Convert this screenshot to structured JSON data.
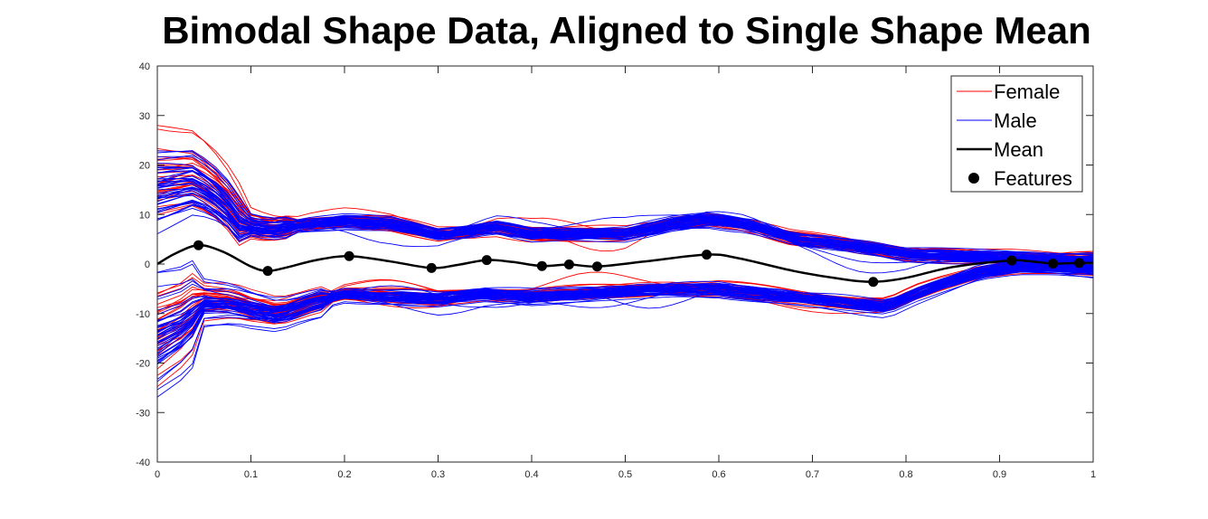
{
  "chart_data": {
    "type": "line",
    "title": "Bimodal Shape Data, Aligned to Single Shape Mean",
    "xlabel": "",
    "ylabel": "",
    "xlim": [
      0,
      1
    ],
    "ylim": [
      -40,
      40
    ],
    "xticks": [
      0,
      0.1,
      0.2,
      0.3,
      0.4,
      0.5,
      0.6,
      0.7,
      0.8,
      0.9,
      1
    ],
    "xtick_labels": [
      "0",
      "0.1",
      "0.2",
      "0.3",
      "0.4",
      "0.5",
      "0.6",
      "0.7",
      "0.8",
      "0.9",
      "1"
    ],
    "yticks": [
      -40,
      -30,
      -20,
      -10,
      0,
      10,
      20,
      30,
      40
    ],
    "ytick_labels": [
      "-40",
      "-30",
      "-20",
      "-10",
      "0",
      "10",
      "20",
      "30",
      "40"
    ],
    "grid": false,
    "legend_position": "top-right",
    "legend": [
      "Female",
      "Male",
      "Mean",
      "Features"
    ],
    "colors": {
      "Female": "#ff0000",
      "Male": "#0000ff",
      "Mean": "#000000",
      "Features": "#000000"
    },
    "series": [
      {
        "name": "Mean",
        "x": [
          0,
          0.02,
          0.044,
          0.07,
          0.1,
          0.118,
          0.14,
          0.17,
          0.205,
          0.25,
          0.293,
          0.32,
          0.352,
          0.38,
          0.411,
          0.44,
          0.47,
          0.52,
          0.587,
          0.62,
          0.68,
          0.73,
          0.765,
          0.8,
          0.85,
          0.91,
          0.93,
          0.957,
          0.985,
          1
        ],
        "values": [
          0,
          2.2,
          3.8,
          2.5,
          -0.5,
          -1.4,
          -0.6,
          0.8,
          1.6,
          0.5,
          -0.8,
          -0.2,
          0.8,
          0.4,
          -0.4,
          -0.1,
          -0.5,
          0.5,
          1.9,
          1.2,
          -1.4,
          -3.0,
          -3.6,
          -2.8,
          -0.6,
          0.7,
          0.6,
          0.1,
          0.2,
          0.2
        ]
      },
      {
        "name": "Features",
        "x": [
          0.044,
          0.118,
          0.205,
          0.293,
          0.352,
          0.411,
          0.44,
          0.47,
          0.587,
          0.765,
          0.913,
          0.957,
          0.985
        ],
        "values": [
          3.8,
          -1.4,
          1.6,
          -0.8,
          0.8,
          -0.4,
          -0.1,
          -0.5,
          1.9,
          -3.6,
          0.7,
          0.1,
          0.2
        ]
      }
    ]
  }
}
